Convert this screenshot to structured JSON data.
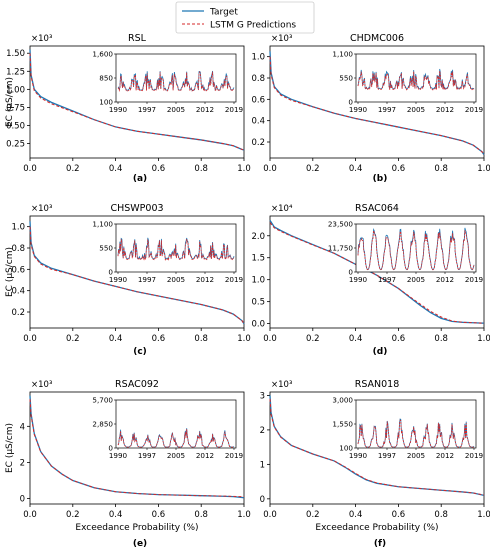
{
  "legend": {
    "target": "Target",
    "predictions": "LSTM G Predictions"
  },
  "colors": {
    "target": "#1f77b4",
    "predictions": "#d62728"
  },
  "common_xlabel": "Exceedance Probability (%)",
  "common_ylabel": "EC (μS/cm)",
  "chart_data": [
    {
      "type": "line",
      "panel_label": "(a)",
      "title": "RSL",
      "multiplier": "×10³",
      "ylabel": "EC (μS/cm)",
      "xlabel": "",
      "xlim": [
        0,
        1
      ],
      "ylim": [
        0.05,
        1.6
      ],
      "xticks": [
        "0.0",
        "0.2",
        "0.4",
        "0.6",
        "0.8",
        "1.0"
      ],
      "yticks": [
        {
          "v": 0.25,
          "label": "0.25"
        },
        {
          "v": 0.5,
          "label": "0.50"
        },
        {
          "v": 0.75,
          "label": "0.75"
        },
        {
          "v": 1.0,
          "label": "1.00"
        },
        {
          "v": 1.25,
          "label": "1.25"
        },
        {
          "v": 1.5,
          "label": "1.50"
        }
      ],
      "series": [
        {
          "name": "Target",
          "x": [
            0,
            0.005,
            0.02,
            0.05,
            0.1,
            0.2,
            0.3,
            0.4,
            0.5,
            0.6,
            0.7,
            0.8,
            0.9,
            0.95,
            0.99,
            1.0
          ],
          "y": [
            1.55,
            1.2,
            1.0,
            0.9,
            0.82,
            0.7,
            0.58,
            0.48,
            0.42,
            0.38,
            0.34,
            0.3,
            0.25,
            0.22,
            0.17,
            0.16
          ]
        },
        {
          "name": "LSTM G Predictions",
          "x": [
            0,
            0.005,
            0.02,
            0.05,
            0.1,
            0.2,
            0.3,
            0.4,
            0.5,
            0.6,
            0.7,
            0.8,
            0.9,
            0.95,
            0.99,
            1.0
          ],
          "y": [
            1.5,
            1.18,
            0.98,
            0.88,
            0.8,
            0.69,
            0.58,
            0.48,
            0.42,
            0.38,
            0.34,
            0.3,
            0.25,
            0.22,
            0.17,
            0.16
          ]
        }
      ],
      "inset": {
        "xticks": [
          "1990",
          "1997",
          "2005",
          "2012",
          "2019"
        ],
        "yticks": [
          "100",
          "850",
          "1,600"
        ],
        "ylim": [
          100,
          1600
        ]
      }
    },
    {
      "type": "line",
      "panel_label": "(b)",
      "title": "CHDMC006",
      "multiplier": "×10³",
      "ylabel": "",
      "xlabel": "",
      "xlim": [
        0,
        1
      ],
      "ylim": [
        0.05,
        1.1
      ],
      "xticks": [
        "0.0",
        "0.2",
        "0.4",
        "0.6",
        "0.8",
        "1.0"
      ],
      "yticks": [
        {
          "v": 0.2,
          "label": "0.2"
        },
        {
          "v": 0.4,
          "label": "0.4"
        },
        {
          "v": 0.6,
          "label": "0.6"
        },
        {
          "v": 0.8,
          "label": "0.8"
        },
        {
          "v": 1.0,
          "label": "1.0"
        }
      ],
      "series": [
        {
          "name": "Target",
          "x": [
            0,
            0.005,
            0.02,
            0.05,
            0.1,
            0.2,
            0.3,
            0.4,
            0.5,
            0.6,
            0.7,
            0.8,
            0.9,
            0.95,
            0.99,
            1.0
          ],
          "y": [
            1.05,
            0.85,
            0.72,
            0.65,
            0.6,
            0.53,
            0.47,
            0.42,
            0.38,
            0.34,
            0.3,
            0.26,
            0.21,
            0.17,
            0.11,
            0.08
          ]
        },
        {
          "name": "LSTM G Predictions",
          "x": [
            0,
            0.005,
            0.02,
            0.05,
            0.1,
            0.2,
            0.3,
            0.4,
            0.5,
            0.6,
            0.7,
            0.8,
            0.9,
            0.95,
            0.99,
            1.0
          ],
          "y": [
            1.0,
            0.83,
            0.71,
            0.64,
            0.59,
            0.53,
            0.47,
            0.42,
            0.38,
            0.34,
            0.3,
            0.26,
            0.21,
            0.17,
            0.11,
            0.08
          ]
        }
      ],
      "inset": {
        "xticks": [
          "1990",
          "1997",
          "2005",
          "2012",
          "2019"
        ],
        "yticks": [
          "0",
          "550",
          "1,100"
        ],
        "ylim": [
          0,
          1100
        ]
      }
    },
    {
      "type": "line",
      "panel_label": "(c)",
      "title": "CHSWP003",
      "multiplier": "×10³",
      "ylabel": "EC (μS/cm)",
      "xlabel": "",
      "xlim": [
        0,
        1
      ],
      "ylim": [
        0.05,
        1.1
      ],
      "xticks": [
        "0.0",
        "0.2",
        "0.4",
        "0.6",
        "0.8",
        "1.0"
      ],
      "yticks": [
        {
          "v": 0.2,
          "label": "0.2"
        },
        {
          "v": 0.4,
          "label": "0.4"
        },
        {
          "v": 0.6,
          "label": "0.6"
        },
        {
          "v": 0.8,
          "label": "0.8"
        },
        {
          "v": 1.0,
          "label": "1.0"
        }
      ],
      "series": [
        {
          "name": "Target",
          "x": [
            0,
            0.005,
            0.02,
            0.05,
            0.1,
            0.2,
            0.3,
            0.4,
            0.5,
            0.6,
            0.7,
            0.8,
            0.9,
            0.95,
            0.99,
            1.0
          ],
          "y": [
            1.05,
            0.85,
            0.73,
            0.66,
            0.61,
            0.55,
            0.49,
            0.44,
            0.39,
            0.35,
            0.31,
            0.27,
            0.22,
            0.18,
            0.12,
            0.09
          ]
        },
        {
          "name": "LSTM G Predictions",
          "x": [
            0,
            0.005,
            0.02,
            0.05,
            0.1,
            0.2,
            0.3,
            0.4,
            0.5,
            0.6,
            0.7,
            0.8,
            0.9,
            0.95,
            0.99,
            1.0
          ],
          "y": [
            1.0,
            0.83,
            0.72,
            0.65,
            0.6,
            0.55,
            0.49,
            0.44,
            0.39,
            0.35,
            0.31,
            0.27,
            0.22,
            0.18,
            0.12,
            0.09
          ]
        }
      ],
      "inset": {
        "xticks": [
          "1990",
          "1997",
          "2005",
          "2012",
          "2019"
        ],
        "yticks": [
          "0",
          "550",
          "1,100"
        ],
        "ylim": [
          0,
          1100
        ]
      }
    },
    {
      "type": "line",
      "panel_label": "(d)",
      "title": "RSAC064",
      "multiplier": "×10⁴",
      "ylabel": "",
      "xlabel": "",
      "xlim": [
        0,
        1
      ],
      "ylim": [
        -0.1,
        2.45
      ],
      "xticks": [
        "0.0",
        "0.2",
        "0.4",
        "0.6",
        "0.8",
        "1.0"
      ],
      "yticks": [
        {
          "v": 0.0,
          "label": "0.0"
        },
        {
          "v": 0.5,
          "label": "0.5"
        },
        {
          "v": 1.0,
          "label": "1.0"
        },
        {
          "v": 1.5,
          "label": "1.5"
        },
        {
          "v": 2.0,
          "label": "2.0"
        }
      ],
      "series": [
        {
          "name": "Target",
          "x": [
            0,
            0.02,
            0.05,
            0.1,
            0.2,
            0.3,
            0.4,
            0.5,
            0.6,
            0.7,
            0.75,
            0.8,
            0.85,
            0.9,
            0.95,
            1.0
          ],
          "y": [
            2.35,
            2.2,
            2.12,
            2.0,
            1.8,
            1.6,
            1.35,
            1.1,
            0.8,
            0.42,
            0.25,
            0.12,
            0.05,
            0.03,
            0.02,
            0.01
          ]
        },
        {
          "name": "LSTM G Predictions",
          "x": [
            0,
            0.02,
            0.05,
            0.1,
            0.2,
            0.3,
            0.4,
            0.5,
            0.6,
            0.7,
            0.75,
            0.8,
            0.85,
            0.9,
            0.95,
            1.0
          ],
          "y": [
            2.3,
            2.18,
            2.1,
            1.99,
            1.79,
            1.6,
            1.35,
            1.1,
            0.8,
            0.45,
            0.28,
            0.15,
            0.06,
            0.03,
            0.02,
            0.01
          ]
        }
      ],
      "inset": {
        "xticks": [
          "1990",
          "1997",
          "2005",
          "2012",
          "2019"
        ],
        "yticks": [
          "0",
          "11,750",
          "23,500"
        ],
        "ylim": [
          0,
          23500
        ]
      }
    },
    {
      "type": "line",
      "panel_label": "(e)",
      "title": "RSAC092",
      "multiplier": "×10³",
      "ylabel": "EC (μS/cm)",
      "xlabel": "Exceedance Probability (%)",
      "xlim": [
        0,
        1
      ],
      "ylim": [
        -0.3,
        5.9
      ],
      "xticks": [
        "0.0",
        "0.2",
        "0.4",
        "0.6",
        "0.8",
        "1.0"
      ],
      "yticks": [
        {
          "v": 0,
          "label": "0"
        },
        {
          "v": 2,
          "label": "2"
        },
        {
          "v": 4,
          "label": "4"
        }
      ],
      "series": [
        {
          "name": "Target",
          "x": [
            0,
            0.005,
            0.02,
            0.05,
            0.1,
            0.15,
            0.2,
            0.3,
            0.4,
            0.5,
            0.6,
            0.7,
            0.8,
            0.9,
            0.95,
            1.0
          ],
          "y": [
            5.7,
            4.7,
            3.6,
            2.6,
            1.8,
            1.35,
            1.0,
            0.6,
            0.38,
            0.28,
            0.22,
            0.19,
            0.16,
            0.13,
            0.11,
            0.05
          ]
        },
        {
          "name": "LSTM G Predictions",
          "x": [
            0,
            0.005,
            0.02,
            0.05,
            0.1,
            0.15,
            0.2,
            0.3,
            0.4,
            0.5,
            0.6,
            0.7,
            0.8,
            0.9,
            0.95,
            1.0
          ],
          "y": [
            5.5,
            4.6,
            3.55,
            2.58,
            1.8,
            1.35,
            1.0,
            0.6,
            0.38,
            0.28,
            0.22,
            0.19,
            0.16,
            0.14,
            0.12,
            0.1
          ]
        }
      ],
      "inset": {
        "xticks": [
          "1990",
          "1997",
          "2005",
          "2012",
          "2019"
        ],
        "yticks": [
          "0",
          "2,850",
          "5,700"
        ],
        "ylim": [
          0,
          5700
        ]
      }
    },
    {
      "type": "line",
      "panel_label": "(f)",
      "title": "RSAN018",
      "multiplier": "×10³",
      "ylabel": "",
      "xlabel": "Exceedance Probability (%)",
      "xlim": [
        0,
        1
      ],
      "ylim": [
        -0.15,
        3.1
      ],
      "xticks": [
        "0.0",
        "0.2",
        "0.4",
        "0.6",
        "0.8",
        "1.0"
      ],
      "yticks": [
        {
          "v": 0,
          "label": "0"
        },
        {
          "v": 1,
          "label": "1"
        },
        {
          "v": 2,
          "label": "2"
        },
        {
          "v": 3,
          "label": "3"
        }
      ],
      "series": [
        {
          "name": "Target",
          "x": [
            0,
            0.005,
            0.02,
            0.05,
            0.1,
            0.2,
            0.3,
            0.35,
            0.4,
            0.45,
            0.5,
            0.6,
            0.7,
            0.8,
            0.9,
            0.95,
            1.0
          ],
          "y": [
            3.0,
            2.5,
            2.1,
            1.8,
            1.55,
            1.3,
            1.1,
            0.92,
            0.72,
            0.55,
            0.45,
            0.35,
            0.3,
            0.25,
            0.2,
            0.17,
            0.1
          ]
        },
        {
          "name": "LSTM G Predictions",
          "x": [
            0,
            0.005,
            0.02,
            0.05,
            0.1,
            0.2,
            0.3,
            0.35,
            0.4,
            0.45,
            0.5,
            0.6,
            0.7,
            0.8,
            0.9,
            0.95,
            1.0
          ],
          "y": [
            2.9,
            2.45,
            2.08,
            1.79,
            1.55,
            1.3,
            1.1,
            0.93,
            0.74,
            0.56,
            0.46,
            0.35,
            0.3,
            0.25,
            0.2,
            0.17,
            0.11
          ]
        }
      ],
      "inset": {
        "xticks": [
          "1990",
          "1997",
          "2005",
          "2012",
          "2019"
        ],
        "yticks": [
          "100",
          "1,550",
          "3,000"
        ],
        "ylim": [
          100,
          3000
        ]
      }
    }
  ]
}
